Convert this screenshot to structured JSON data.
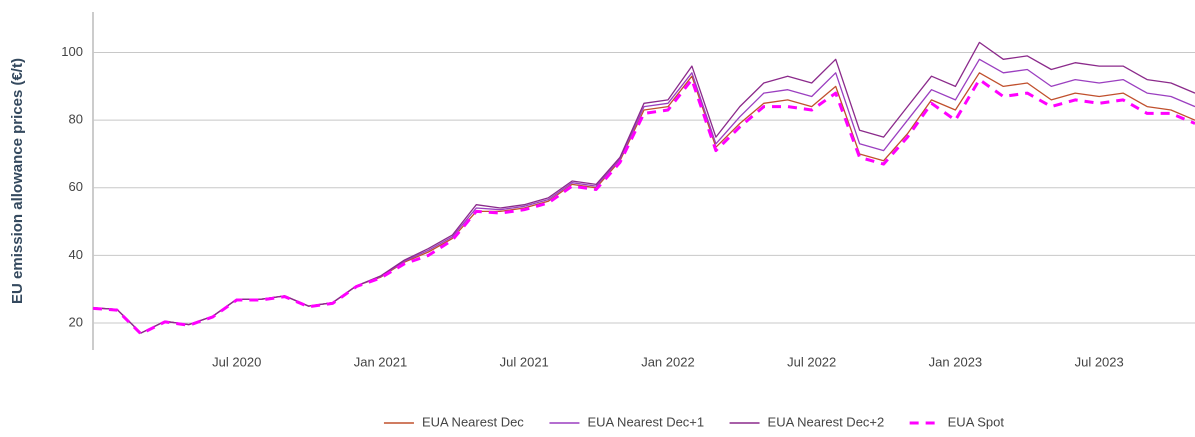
{
  "chart_data": {
    "type": "line",
    "y_axis_label": "EU emission allowance prices (€/t)",
    "x": [
      "2020-01",
      "2020-02",
      "2020-03",
      "2020-04",
      "2020-05",
      "2020-06",
      "2020-07",
      "2020-08",
      "2020-09",
      "2020-10",
      "2020-11",
      "2020-12",
      "2021-01",
      "2021-02",
      "2021-03",
      "2021-04",
      "2021-05",
      "2021-06",
      "2021-07",
      "2021-08",
      "2021-09",
      "2021-10",
      "2021-11",
      "2021-12",
      "2022-01",
      "2022-02",
      "2022-03",
      "2022-04",
      "2022-05",
      "2022-06",
      "2022-07",
      "2022-08",
      "2022-09",
      "2022-10",
      "2022-11",
      "2022-12",
      "2023-01",
      "2023-02",
      "2023-03",
      "2023-04",
      "2023-05",
      "2023-06",
      "2023-07",
      "2023-08",
      "2023-09",
      "2023-10",
      "2023-11"
    ],
    "series": [
      {
        "name": "EUA Nearest Dec",
        "color": "#c0502d",
        "line_style": "solid",
        "values": [
          24.5,
          24,
          17,
          20.5,
          19.5,
          22,
          27,
          27,
          28,
          25,
          26,
          31,
          33.5,
          38,
          41,
          45,
          53,
          53,
          54,
          56,
          61,
          60,
          68,
          83,
          84,
          93,
          72,
          79,
          85,
          86,
          84,
          90,
          70,
          68,
          76,
          86,
          83,
          94,
          90,
          91,
          86,
          88,
          87,
          88,
          84,
          83,
          80
        ]
      },
      {
        "name": "EUA Nearest Dec+1",
        "color": "#9b3fc0",
        "line_style": "solid",
        "values": [
          24.5,
          24,
          17,
          20.5,
          19.5,
          22,
          27,
          27,
          28,
          25,
          26,
          31,
          33.7,
          38.3,
          41.5,
          45.5,
          54,
          53.5,
          54.5,
          56.5,
          61.5,
          60.5,
          68.5,
          84,
          85,
          94,
          73,
          81,
          88,
          89,
          87,
          94,
          73,
          71,
          80,
          89,
          86,
          98,
          94,
          95,
          90,
          92,
          91,
          92,
          88,
          87,
          84
        ]
      },
      {
        "name": "EUA Nearest Dec+2",
        "color": "#8b2a8b",
        "line_style": "solid",
        "values": [
          24.5,
          24,
          17,
          20.5,
          19.5,
          22,
          27,
          27,
          28,
          25,
          26,
          31,
          33.9,
          38.6,
          42,
          46,
          55,
          54,
          55,
          57,
          62,
          61,
          69,
          85,
          86,
          96,
          75,
          84,
          91,
          93,
          91,
          98,
          77,
          75,
          84,
          93,
          90,
          103,
          98,
          99,
          95,
          97,
          96,
          96,
          92,
          91,
          88
        ]
      },
      {
        "name": "EUA Spot",
        "color": "#ff00ff",
        "line_style": "dashed",
        "values": [
          24.3,
          23.8,
          16.8,
          20.3,
          19.3,
          21.8,
          26.8,
          26.8,
          27.8,
          24.8,
          25.8,
          30.8,
          33.3,
          37.5,
          40,
          44.5,
          53,
          52.5,
          53.5,
          55.5,
          60.5,
          59.5,
          67.5,
          82,
          83,
          92,
          71,
          78,
          84,
          84,
          83,
          88,
          69,
          67,
          75,
          85,
          80,
          92,
          87,
          88,
          84,
          86,
          85,
          86,
          82,
          82,
          79
        ]
      }
    ],
    "xlim": [
      "2020-01",
      "2023-11"
    ],
    "xticks": [
      {
        "value": "2020-07",
        "label": "Jul 2020"
      },
      {
        "value": "2021-01",
        "label": "Jan 2021"
      },
      {
        "value": "2021-07",
        "label": "Jul 2021"
      },
      {
        "value": "2022-01",
        "label": "Jan 2022"
      },
      {
        "value": "2022-07",
        "label": "Jul 2022"
      },
      {
        "value": "2023-01",
        "label": "Jan 2023"
      },
      {
        "value": "2023-07",
        "label": "Jul 2023"
      }
    ],
    "ylim": [
      12,
      112
    ],
    "yticks": [
      20,
      40,
      60,
      80,
      100
    ],
    "grid": true,
    "legend": "bottom"
  }
}
